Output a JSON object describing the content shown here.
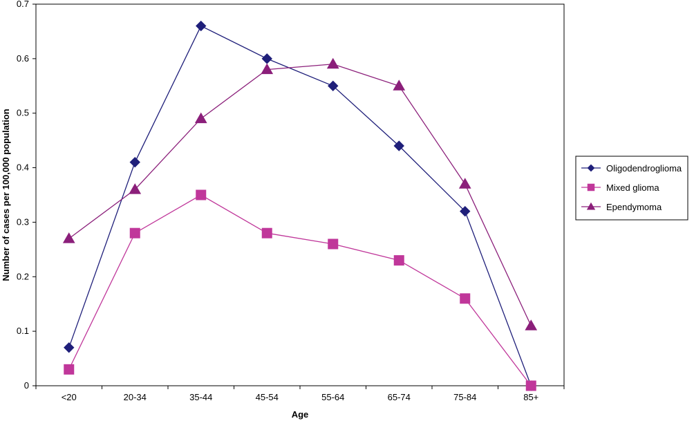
{
  "chart_data": {
    "type": "line",
    "categories": [
      "<20",
      "20-34",
      "35-44",
      "45-54",
      "55-64",
      "65-74",
      "75-84",
      "85+"
    ],
    "series": [
      {
        "name": "Oligodendroglioma",
        "values": [
          0.07,
          0.41,
          0.66,
          0.6,
          0.55,
          0.44,
          0.32,
          0.0
        ],
        "color": "#1f1f7a",
        "marker": "diamond"
      },
      {
        "name": "Mixed glioma",
        "values": [
          0.03,
          0.28,
          0.35,
          0.28,
          0.26,
          0.23,
          0.16,
          0.0
        ],
        "color": "#c0379a",
        "marker": "square"
      },
      {
        "name": "Ependymoma",
        "values": [
          0.27,
          0.36,
          0.49,
          0.58,
          0.59,
          0.55,
          0.37,
          0.11
        ],
        "color": "#8b1f7a",
        "marker": "triangle"
      }
    ],
    "xlabel": "Age",
    "ylabel": "Number of cases per 100,000 population",
    "ylim": [
      0,
      0.7
    ],
    "yticks": [
      "0",
      "0.1",
      "0.2",
      "0.3",
      "0.4",
      "0.5",
      "0.6",
      "0.7"
    ],
    "grid": false,
    "legend_position": "right"
  }
}
